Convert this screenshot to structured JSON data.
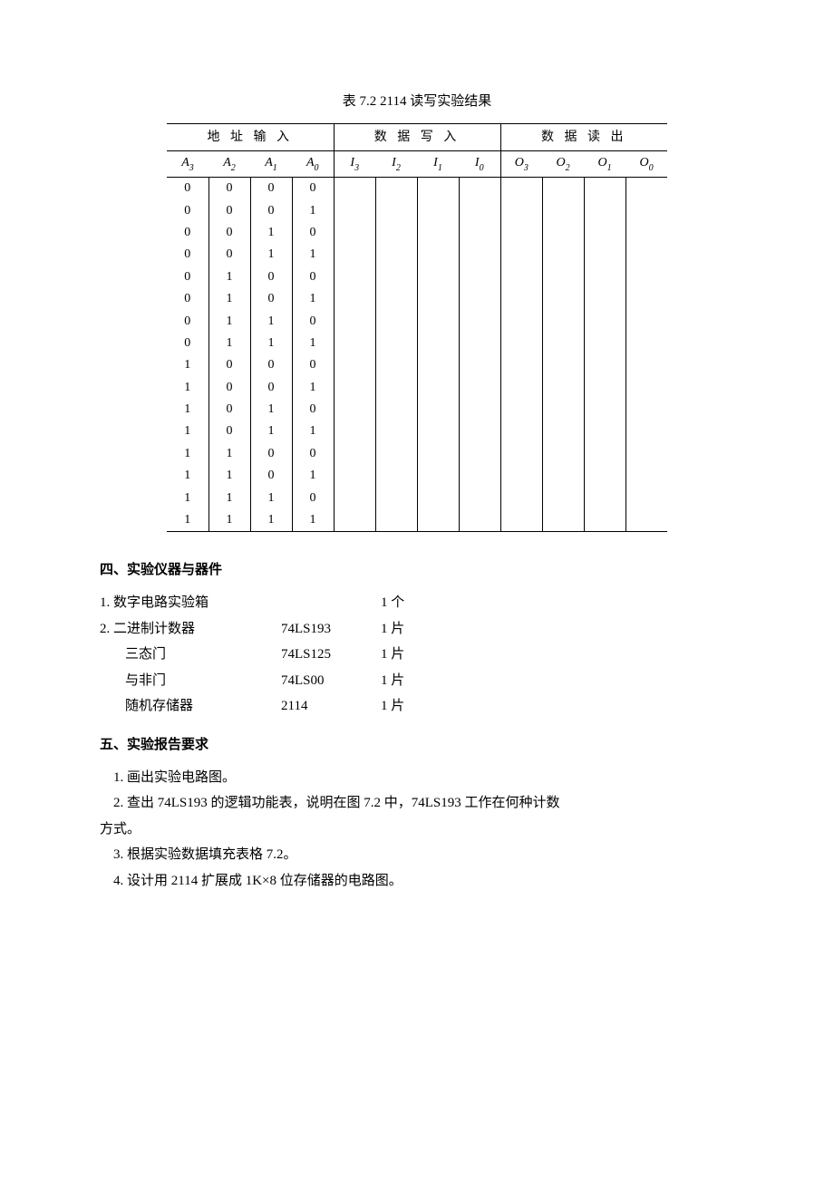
{
  "table": {
    "caption": "表 7.2 2114 读写实验结果",
    "group_headers": [
      "地 址 输 入",
      "数 据 写 入",
      "数 据 读 出"
    ],
    "sub_headers": [
      {
        "base": "A",
        "sub": "3"
      },
      {
        "base": "A",
        "sub": "2"
      },
      {
        "base": "A",
        "sub": "1"
      },
      {
        "base": "A",
        "sub": "0"
      },
      {
        "base": "I",
        "sub": "3"
      },
      {
        "base": "I",
        "sub": "2"
      },
      {
        "base": "I",
        "sub": "1"
      },
      {
        "base": "I",
        "sub": "0"
      },
      {
        "base": "O",
        "sub": "3"
      },
      {
        "base": "O",
        "sub": "2"
      },
      {
        "base": "O",
        "sub": "1"
      },
      {
        "base": "O",
        "sub": "0"
      }
    ],
    "rows": [
      [
        "0",
        "0",
        "0",
        "0",
        "",
        "",
        "",
        "",
        "",
        "",
        "",
        ""
      ],
      [
        "0",
        "0",
        "0",
        "1",
        "",
        "",
        "",
        "",
        "",
        "",
        "",
        ""
      ],
      [
        "0",
        "0",
        "1",
        "0",
        "",
        "",
        "",
        "",
        "",
        "",
        "",
        ""
      ],
      [
        "0",
        "0",
        "1",
        "1",
        "",
        "",
        "",
        "",
        "",
        "",
        "",
        ""
      ],
      [
        "0",
        "1",
        "0",
        "0",
        "",
        "",
        "",
        "",
        "",
        "",
        "",
        ""
      ],
      [
        "0",
        "1",
        "0",
        "1",
        "",
        "",
        "",
        "",
        "",
        "",
        "",
        ""
      ],
      [
        "0",
        "1",
        "1",
        "0",
        "",
        "",
        "",
        "",
        "",
        "",
        "",
        ""
      ],
      [
        "0",
        "1",
        "1",
        "1",
        "",
        "",
        "",
        "",
        "",
        "",
        "",
        ""
      ],
      [
        "1",
        "0",
        "0",
        "0",
        "",
        "",
        "",
        "",
        "",
        "",
        "",
        ""
      ],
      [
        "1",
        "0",
        "0",
        "1",
        "",
        "",
        "",
        "",
        "",
        "",
        "",
        ""
      ],
      [
        "1",
        "0",
        "1",
        "0",
        "",
        "",
        "",
        "",
        "",
        "",
        "",
        ""
      ],
      [
        "1",
        "0",
        "1",
        "1",
        "",
        "",
        "",
        "",
        "",
        "",
        "",
        ""
      ],
      [
        "1",
        "1",
        "0",
        "0",
        "",
        "",
        "",
        "",
        "",
        "",
        "",
        ""
      ],
      [
        "1",
        "1",
        "0",
        "1",
        "",
        "",
        "",
        "",
        "",
        "",
        "",
        ""
      ],
      [
        "1",
        "1",
        "1",
        "0",
        "",
        "",
        "",
        "",
        "",
        "",
        "",
        ""
      ],
      [
        "1",
        "1",
        "1",
        "1",
        "",
        "",
        "",
        "",
        "",
        "",
        "",
        ""
      ]
    ]
  },
  "section4": {
    "heading": "四、实验仪器与器件",
    "items": [
      {
        "label": "1. 数字电路实验箱",
        "model": "",
        "qty": "1 个",
        "indent": false
      },
      {
        "label": "2. 二进制计数器",
        "model": "74LS193",
        "qty": "1 片",
        "indent": false
      },
      {
        "label": "三态门",
        "model": "74LS125",
        "qty": "1 片",
        "indent": true
      },
      {
        "label": "与非门",
        "model": "74LS00",
        "qty": "1 片",
        "indent": true
      },
      {
        "label": "随机存储器",
        "model": "2114",
        "qty": "1 片",
        "indent": true
      }
    ]
  },
  "section5": {
    "heading": "五、实验报告要求",
    "items": [
      "1. 画出实验电路图。",
      "2. 查出 74LS193 的逻辑功能表，说明在图 7.2 中，74LS193 工作在何种计数",
      "方式。",
      "3. 根据实验数据填充表格 7.2。",
      "4. 设计用 2114 扩展成 1K×8 位存储器的电路图。"
    ],
    "wrap_indices": [
      2
    ]
  }
}
